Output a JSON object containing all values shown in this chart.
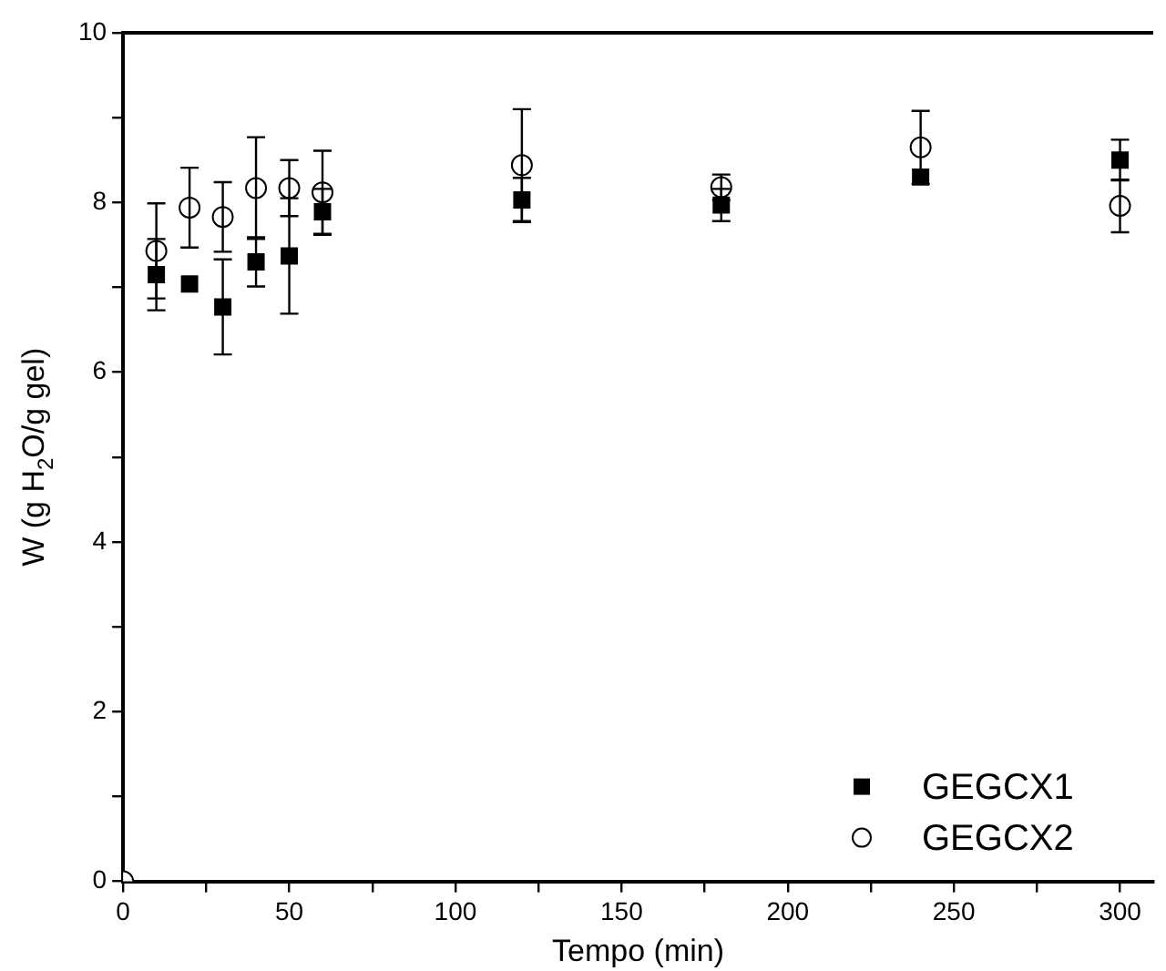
{
  "chart_data": {
    "type": "scatter",
    "xlabel": "Tempo (min)",
    "ylabel": "W (g H$_{2}$O/g gel)",
    "x": [
      0,
      10,
      20,
      30,
      40,
      50,
      60,
      120,
      180,
      240,
      300
    ],
    "series": [
      {
        "name": "GEGCX1",
        "color": "#000000",
        "marker": "square",
        "values": [
          null,
          7.15,
          7.04,
          6.77,
          7.3,
          7.37,
          7.89,
          8.03,
          7.97,
          8.3,
          8.5
        ],
        "errors": [
          null,
          0.42,
          null,
          0.56,
          0.29,
          0.68,
          0.27,
          0.26,
          0.19,
          null,
          0.24
        ]
      },
      {
        "name": "GEGCX2",
        "color": "#000000",
        "marker": "circle",
        "values": [
          0,
          7.43,
          7.94,
          7.83,
          8.17,
          8.17,
          8.12,
          8.44,
          8.18,
          8.65,
          7.96
        ],
        "errors": [
          null,
          0.56,
          0.47,
          0.41,
          0.6,
          0.33,
          0.49,
          0.66,
          0.15,
          0.43,
          0.31
        ]
      }
    ],
    "xlim": [
      0,
      310
    ],
    "ylim": [
      0,
      10
    ],
    "xticks": [
      0,
      {
        "value": 25,
        "label": null
      },
      50,
      {
        "value": 75,
        "label": null
      },
      100,
      {
        "value": 125,
        "label": null
      },
      150,
      {
        "value": 175,
        "label": null
      },
      200,
      {
        "value": 225,
        "label": null
      },
      250,
      {
        "value": 275,
        "label": null
      },
      300
    ],
    "yticks": [
      0,
      {
        "value": 1,
        "label": null
      },
      2,
      {
        "value": 3,
        "label": null
      },
      4,
      {
        "value": 5,
        "label": null
      },
      6,
      {
        "value": 7,
        "label": null
      },
      8,
      {
        "value": 9,
        "label": null
      },
      10
    ],
    "legend": "bottom right",
    "grid": false
  }
}
